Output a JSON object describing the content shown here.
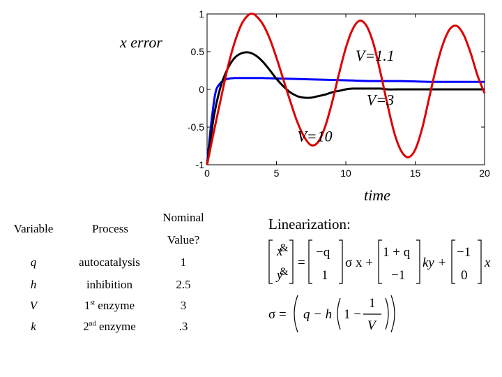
{
  "chart_data": {
    "type": "line",
    "ylabel": "x error",
    "xlabel": "time",
    "xlim": [
      0,
      20
    ],
    "ylim": [
      -1,
      1
    ],
    "xticks": [
      "0",
      "5",
      "10",
      "15",
      "20"
    ],
    "yticks": [
      "1",
      "0.5",
      "0",
      "-0.5",
      "-1"
    ],
    "grid": false,
    "series": [
      {
        "name": "V=1.1",
        "color": "#000000",
        "x": [
          0,
          0.5,
          1,
          1.5,
          2,
          2.5,
          3,
          3.5,
          4,
          4.5,
          5,
          5.5,
          6,
          6.5,
          7,
          7.5,
          8,
          8.5,
          9,
          9.5,
          10,
          10.5,
          11,
          11.5,
          12,
          12.5,
          13,
          14,
          15,
          16,
          17,
          18,
          19,
          20
        ],
        "y": [
          -1,
          -0.35,
          0.05,
          0.28,
          0.42,
          0.48,
          0.49,
          0.45,
          0.37,
          0.26,
          0.14,
          0.04,
          -0.04,
          -0.09,
          -0.11,
          -0.11,
          -0.09,
          -0.07,
          -0.04,
          -0.02,
          0.0,
          0.01,
          0.01,
          0.01,
          0.01,
          0.01,
          0.0,
          0.0,
          0.0,
          0.0,
          0.0,
          0.0,
          0.0,
          0.0
        ]
      },
      {
        "name": "V=3",
        "color": "#0000ff",
        "x": [
          0,
          0.3,
          0.6,
          0.9,
          1.2,
          1.5,
          2,
          2.5,
          3,
          4,
          6,
          8,
          10,
          12,
          14,
          16,
          18,
          20
        ],
        "y": [
          -1,
          -0.45,
          -0.05,
          0.07,
          0.12,
          0.14,
          0.15,
          0.15,
          0.15,
          0.15,
          0.14,
          0.13,
          0.12,
          0.11,
          0.11,
          0.1,
          0.1,
          0.1
        ]
      },
      {
        "name": "V=10",
        "color": "#dd0000",
        "x": [
          0,
          0.5,
          1,
          1.5,
          2,
          2.5,
          3,
          3.3,
          3.5,
          4,
          4.5,
          5,
          5.5,
          6,
          6.5,
          7,
          7.5,
          8,
          8.5,
          9,
          9.5,
          10,
          10.5,
          11,
          11.5,
          12,
          12.5,
          13,
          13.5,
          14,
          14.5,
          15,
          15.5,
          16,
          16.5,
          17,
          17.5,
          18,
          18.5,
          19,
          19.5,
          20
        ],
        "y": [
          -1,
          -0.55,
          -0.12,
          0.3,
          0.63,
          0.87,
          0.99,
          1.0,
          0.98,
          0.87,
          0.68,
          0.42,
          0.13,
          -0.16,
          -0.43,
          -0.63,
          -0.74,
          -0.7,
          -0.5,
          -0.18,
          0.2,
          0.55,
          0.8,
          0.91,
          0.84,
          0.6,
          0.22,
          -0.2,
          -0.58,
          -0.82,
          -0.9,
          -0.8,
          -0.52,
          -0.12,
          0.28,
          0.6,
          0.8,
          0.84,
          0.72,
          0.48,
          0.18,
          -0.05
        ]
      }
    ],
    "annotations": [
      {
        "text": "V=1.1",
        "x": 10.7,
        "y": 0.38
      },
      {
        "text": "V=3",
        "x": 11.5,
        "y": -0.21
      },
      {
        "text": "V=10",
        "x": 6.5,
        "y": -0.69
      }
    ]
  },
  "table": {
    "headers": {
      "variable": "Variable",
      "process": "Process",
      "nominal_line1": "Nominal",
      "nominal_line2": "Value?"
    },
    "rows": [
      {
        "variable": "q",
        "process": "autocatalysis",
        "value": "1"
      },
      {
        "variable": "h",
        "process": "inhibition",
        "value": "2.5"
      },
      {
        "variable": "V",
        "process_prefix": "1",
        "process_sup": "st",
        "process_suffix": "enzyme",
        "value": "3"
      },
      {
        "variable": "k",
        "process_prefix": "2",
        "process_sup": "nd",
        "process_suffix": "enzyme",
        "value": ".3"
      }
    ]
  },
  "linearization": {
    "title": "Linearization:",
    "lhs_top": "&",
    "lhs_top_var": "x",
    "lhs_bottom": "&",
    "lhs_bottom_var": "y",
    "equals": "=",
    "m1_top": "−q",
    "m1_bottom": "1",
    "sigma_x": "σ x +",
    "m2_top": "1 + q",
    "m2_bottom": "−1",
    "ky": "ky +",
    "m3_top": "−1",
    "m3_bottom": "0",
    "tail_x": "x",
    "sigma_eq": "σ =",
    "q": "q",
    "minus_h": "− h",
    "one_minus": "1 −",
    "frac_num": "1",
    "frac_den": "V"
  }
}
